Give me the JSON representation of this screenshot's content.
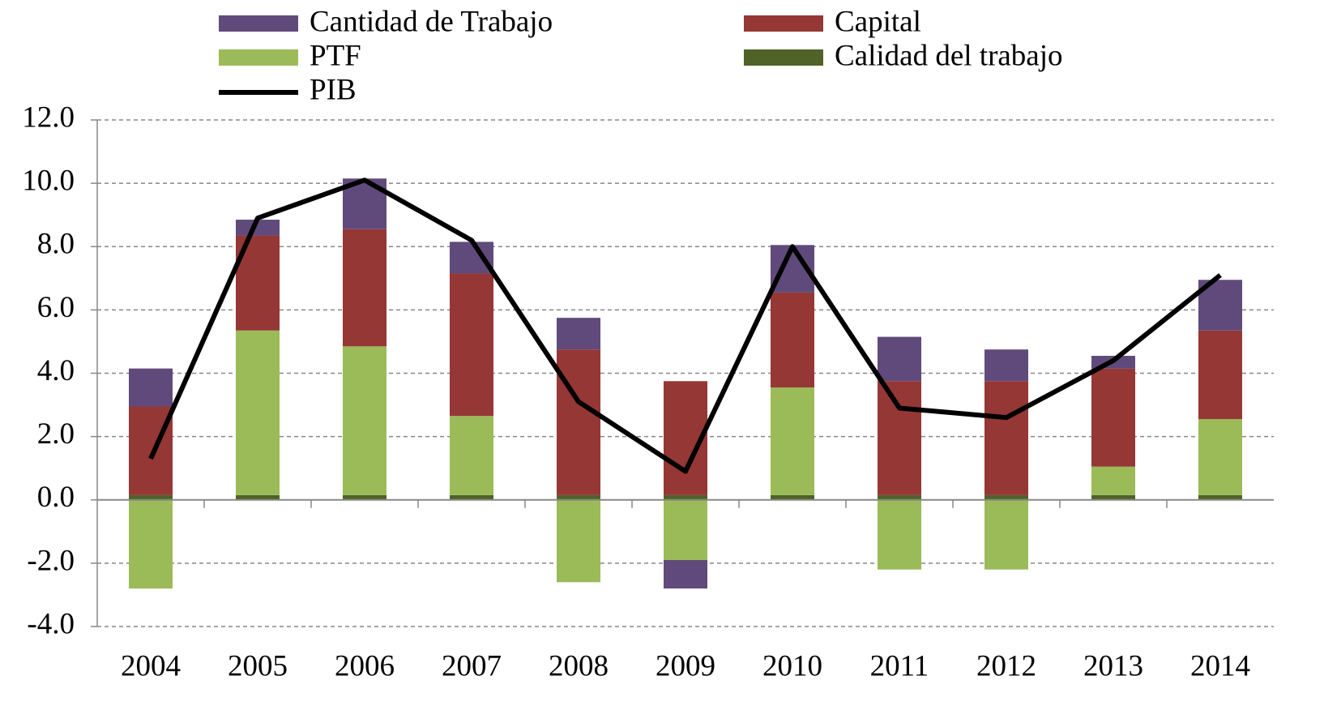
{
  "chart_data": {
    "type": "stacked_bar_line",
    "categories": [
      "2004",
      "2005",
      "2006",
      "2007",
      "2008",
      "2009",
      "2010",
      "2011",
      "2012",
      "2013",
      "2014"
    ],
    "series": [
      {
        "name": "Cantidad de Trabajo",
        "type": "bar",
        "color": "#604a7b",
        "values": [
          1.2,
          0.5,
          1.6,
          1.0,
          1.0,
          -0.9,
          1.5,
          1.4,
          1.0,
          0.4,
          1.6
        ]
      },
      {
        "name": "Capital",
        "type": "bar",
        "color": "#953735",
        "values": [
          2.8,
          3.0,
          3.7,
          4.5,
          4.6,
          3.6,
          3.0,
          3.6,
          3.6,
          3.1,
          2.8
        ]
      },
      {
        "name": "PTF",
        "type": "bar",
        "color": "#9bbb59",
        "values": [
          -2.8,
          5.2,
          4.7,
          2.5,
          -2.6,
          -1.9,
          3.4,
          -2.2,
          -2.2,
          0.9,
          2.4
        ]
      },
      {
        "name": "Calidad del trabajo",
        "type": "bar",
        "color": "#4f6228",
        "values": [
          0.15,
          0.15,
          0.15,
          0.15,
          0.15,
          0.15,
          0.15,
          0.15,
          0.15,
          0.15,
          0.15
        ]
      },
      {
        "name": "PIB",
        "type": "line",
        "color": "#000000",
        "values": [
          1.3,
          8.9,
          10.1,
          8.2,
          3.1,
          0.9,
          8.0,
          2.9,
          2.6,
          4.4,
          7.1
        ]
      }
    ],
    "ylim": [
      -4,
      12
    ],
    "yticks": [
      {
        "value": -4,
        "label": "-4.0"
      },
      {
        "value": -2,
        "label": "-2.0"
      },
      {
        "value": 0,
        "label": "0.0"
      },
      {
        "value": 2,
        "label": "2.0"
      },
      {
        "value": 4,
        "label": "4.0"
      },
      {
        "value": 6,
        "label": "6.0"
      },
      {
        "value": 8,
        "label": "8.0"
      },
      {
        "value": 10,
        "label": "10.0"
      },
      {
        "value": 12,
        "label": "12.0"
      }
    ],
    "grid": true,
    "legend": "top"
  }
}
